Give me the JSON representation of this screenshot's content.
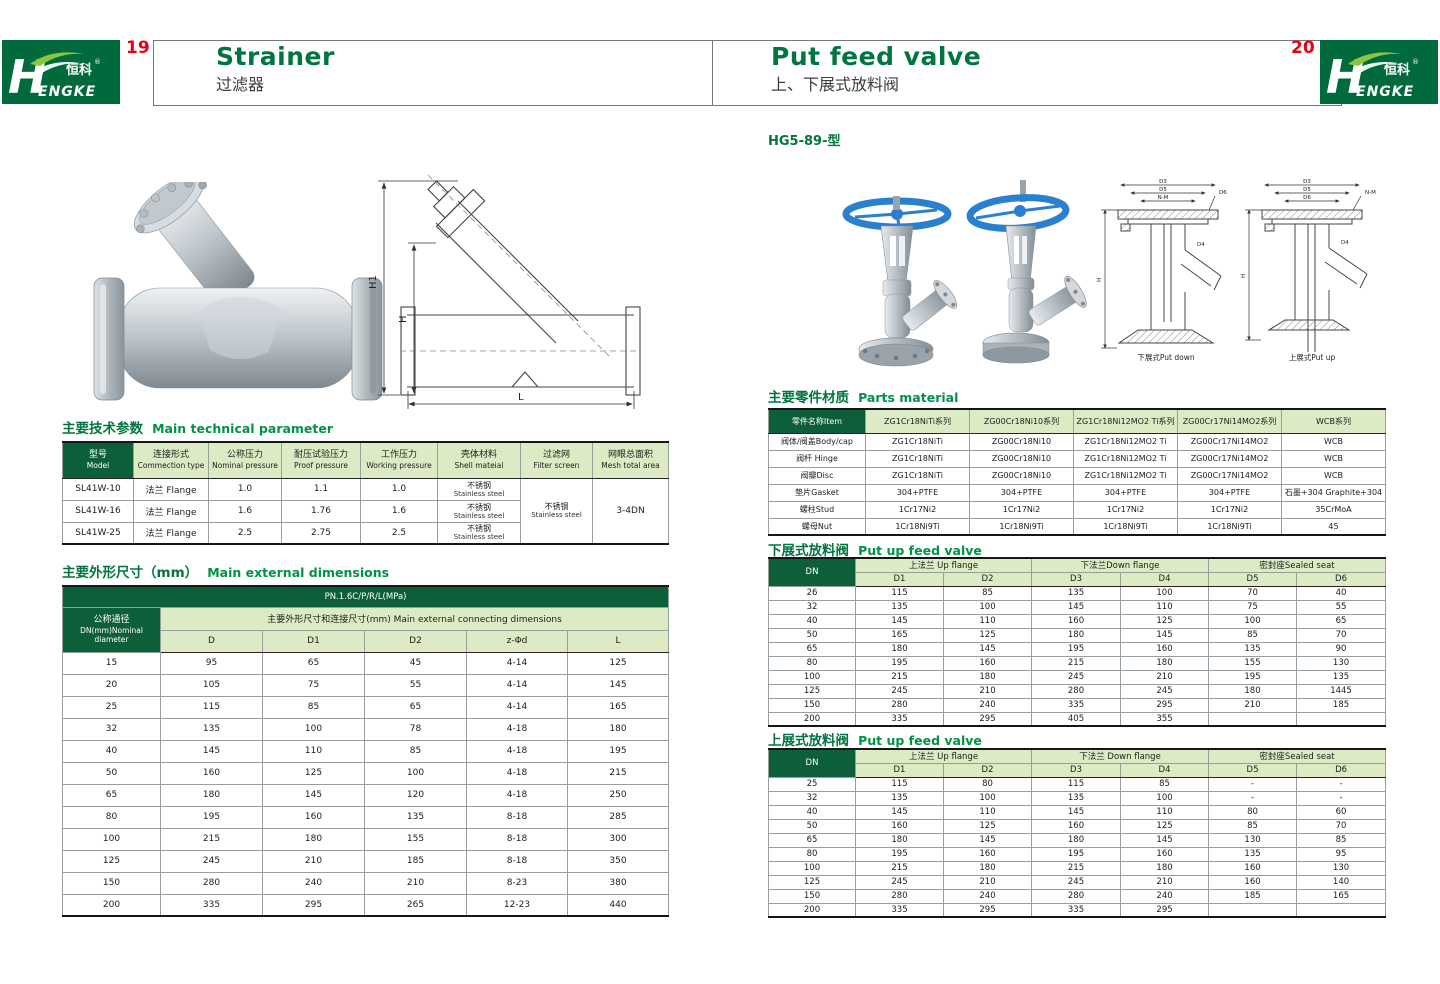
{
  "colors": {
    "dark_green": "#0d5f39",
    "light_green": "#dcebc4",
    "title_green": "#00753f",
    "page_number_red": "#e60012",
    "logo_green": "#006a3d",
    "leaf_green": "#8cc63f",
    "handwheel_blue": "#2a80cf",
    "steel_gray": "#b9c1c7"
  },
  "brand": {
    "name_zh": "恒科",
    "reg": "®",
    "name_en_h": "H",
    "name_en_rest": "ENGKE"
  },
  "left_page": {
    "page_number": "19",
    "title_en": "Strainer",
    "title_zh": "过滤器",
    "drawing_labels": {
      "h1": "H1",
      "h": "H",
      "l": "L"
    },
    "tech_section": {
      "title_zh": "主要技术参数",
      "title_en": "Main technical parameter",
      "headers": [
        {
          "zh": "型号",
          "en": "Model"
        },
        {
          "zh": "连接形式",
          "en": "Commection type"
        },
        {
          "zh": "公称压力",
          "en": "Nominal pressure"
        },
        {
          "zh": "耐压试验压力",
          "en": "Proof pressure"
        },
        {
          "zh": "工作压力",
          "en": "Working pressure"
        },
        {
          "zh": "壳体材料",
          "en": "Shell mateial"
        },
        {
          "zh": "过滤网",
          "en": "Filter screen"
        },
        {
          "zh": "网眼总面积",
          "en": "Mesh total area"
        }
      ],
      "rows": [
        {
          "model": "SL41W-10",
          "connection": "法兰 Flange",
          "nominal": "1.0",
          "proof": "1.1",
          "working": "1.0",
          "shell_zh": "不锈钢",
          "shell_en": "Stainless steel"
        },
        {
          "model": "SL41W-16",
          "connection": "法兰 Flange",
          "nominal": "1.6",
          "proof": "1.76",
          "working": "1.6",
          "shell_zh": "不锈钢",
          "shell_en": "Stainless steel"
        },
        {
          "model": "SL41W-25",
          "connection": "法兰 Flange",
          "nominal": "2.5",
          "proof": "2.75",
          "working": "2.5",
          "shell_zh": "不锈钢",
          "shell_en": "Stainless steel"
        }
      ],
      "filter_screen_zh": "不锈钢",
      "filter_screen_en": "Stainless steel",
      "mesh_total": "3-4DN"
    },
    "dims_section": {
      "title_zh": "主要外形尺寸（mm）",
      "title_en": "Main external dimensions",
      "pressure_band": "PN.1.6C/P/R/L(MPa)",
      "dn_line1": "公称通径",
      "dn_line2": "DN(mm)Nominal",
      "dn_line3": "diameter",
      "group_header": "主要外形尺寸和连接尺寸(mm) Main external connecting dimensions",
      "col_headers": [
        "D",
        "D1",
        "D2",
        "z-Φd",
        "L"
      ],
      "rows": [
        [
          "15",
          "95",
          "65",
          "45",
          "4-14",
          "125"
        ],
        [
          "20",
          "105",
          "75",
          "55",
          "4-14",
          "145"
        ],
        [
          "25",
          "115",
          "85",
          "65",
          "4-14",
          "165"
        ],
        [
          "32",
          "135",
          "100",
          "78",
          "4-18",
          "180"
        ],
        [
          "40",
          "145",
          "110",
          "85",
          "4-18",
          "195"
        ],
        [
          "50",
          "160",
          "125",
          "100",
          "4-18",
          "215"
        ],
        [
          "65",
          "180",
          "145",
          "120",
          "4-18",
          "250"
        ],
        [
          "80",
          "195",
          "160",
          "135",
          "8-18",
          "285"
        ],
        [
          "100",
          "215",
          "180",
          "155",
          "8-18",
          "300"
        ],
        [
          "125",
          "245",
          "210",
          "185",
          "8-18",
          "350"
        ],
        [
          "150",
          "280",
          "240",
          "210",
          "8-23",
          "380"
        ],
        [
          "200",
          "335",
          "295",
          "265",
          "12-23",
          "440"
        ]
      ]
    }
  },
  "right_page": {
    "page_number": "20",
    "title_en": "Put feed valve",
    "title_zh": "上、下展式放料阀",
    "model_label": "HG5-89-型",
    "dn_label": "DN",
    "drawing_captions": [
      "下展式Put down",
      "上展式Put up"
    ],
    "drawing_labels": {
      "d3": "D3",
      "d5": "D5",
      "d6": "D6",
      "nm": "N-M",
      "d4": "D4",
      "h": "H"
    },
    "parts_section": {
      "title_zh": "主要零件材质",
      "title_en": "Parts material",
      "headers": [
        "零件名称Item",
        "ZG1Cr18NiTi系列",
        "ZG00Cr18Ni10系列",
        "ZG1Cr18Ni12MO2 Ti系列",
        "ZG00Cr17Ni14MO2系列",
        "WCB系列"
      ],
      "rows": [
        [
          "阀体/阀盖Body/cap",
          "ZG1Cr18NiTi",
          "ZG00Cr18Ni10",
          "ZG1Cr18Ni12MO2 Ti",
          "ZG00Cr17Ni14MO2",
          "WCB"
        ],
        [
          "阀杆 Hinge",
          "ZG1Cr18NiTi",
          "ZG00Cr18Ni10",
          "ZG1Cr18Ni12MO2 Ti",
          "ZG00Cr17Ni14MO2",
          "WCB"
        ],
        [
          "阀瓣Disc",
          "ZG1Cr18NiTi",
          "ZG00Cr18Ni10",
          "ZG1Cr18Ni12MO2 Ti",
          "ZG00Cr17Ni14MO2",
          "WCB"
        ],
        [
          "垫片Gasket",
          "304+PTFE",
          "304+PTFE",
          "304+PTFE",
          "304+PTFE",
          "石墨+304 Graphite+304"
        ],
        [
          "螺柱Stud",
          "1Cr17Ni2",
          "1Cr17Ni2",
          "1Cr17Ni2",
          "1Cr17Ni2",
          "35CrMoA"
        ],
        [
          "螺母Nut",
          "1Cr18Ni9Ti",
          "1Cr18Ni9Ti",
          "1Cr18Ni9Ti",
          "1Cr18Ni9Ti",
          "45"
        ]
      ]
    },
    "down_table": {
      "title_zh": "下展式放料阀",
      "title_en": "Put up feed valve",
      "groups": [
        "上法兰 Up flange",
        "下法兰Down flange",
        "密封座Sealed seat"
      ],
      "col_headers": [
        "D1",
        "D2",
        "D3",
        "D4",
        "D5",
        "D6"
      ],
      "rows": [
        [
          "26",
          "115",
          "85",
          "135",
          "100",
          "70",
          "40"
        ],
        [
          "32",
          "135",
          "100",
          "145",
          "110",
          "75",
          "55"
        ],
        [
          "40",
          "145",
          "110",
          "160",
          "125",
          "100",
          "65"
        ],
        [
          "50",
          "165",
          "125",
          "180",
          "145",
          "85",
          "70"
        ],
        [
          "65",
          "180",
          "145",
          "195",
          "160",
          "135",
          "90"
        ],
        [
          "80",
          "195",
          "160",
          "215",
          "180",
          "155",
          "130"
        ],
        [
          "100",
          "215",
          "180",
          "245",
          "210",
          "195",
          "135"
        ],
        [
          "125",
          "245",
          "210",
          "280",
          "245",
          "180",
          "1445"
        ],
        [
          "150",
          "280",
          "240",
          "335",
          "295",
          "210",
          "185"
        ],
        [
          "200",
          "335",
          "295",
          "405",
          "355",
          "",
          ""
        ]
      ]
    },
    "up_table": {
      "title_zh": "上展式放料阀",
      "title_en": "Put up feed valve",
      "groups": [
        "上法兰 Up flange",
        "下法兰 Down flange",
        "密封座Sealed seat"
      ],
      "col_headers": [
        "D1",
        "D2",
        "D3",
        "D4",
        "D5",
        "D6"
      ],
      "rows": [
        [
          "25",
          "115",
          "80",
          "115",
          "85",
          "-",
          "-"
        ],
        [
          "32",
          "135",
          "100",
          "135",
          "100",
          "-",
          "-"
        ],
        [
          "40",
          "145",
          "110",
          "145",
          "110",
          "80",
          "60"
        ],
        [
          "50",
          "160",
          "125",
          "160",
          "125",
          "85",
          "70"
        ],
        [
          "65",
          "180",
          "145",
          "180",
          "145",
          "130",
          "85"
        ],
        [
          "80",
          "195",
          "160",
          "195",
          "160",
          "135",
          "95"
        ],
        [
          "100",
          "215",
          "180",
          "215",
          "180",
          "160",
          "130"
        ],
        [
          "125",
          "245",
          "210",
          "245",
          "210",
          "160",
          "140"
        ],
        [
          "150",
          "280",
          "240",
          "280",
          "240",
          "185",
          "165"
        ],
        [
          "200",
          "335",
          "295",
          "335",
          "295",
          "",
          ""
        ]
      ]
    }
  }
}
